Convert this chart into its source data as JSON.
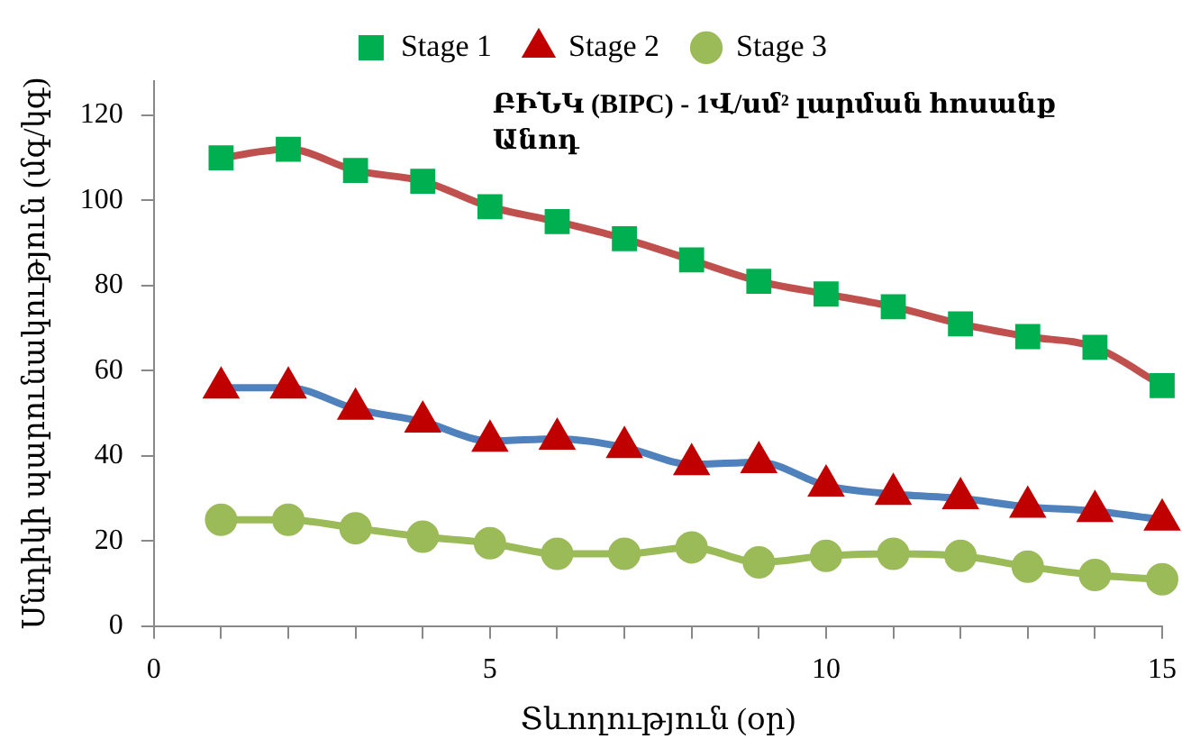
{
  "chart_data": {
    "type": "line",
    "xlabel": "Տևողություն (օր)",
    "ylabel": "Սնդիկի պարունակություն (մգ/կգ)",
    "annotations": [
      "ԲԻՆԿ (BIPC) - 1Վ/սմ² լարման հոսանք",
      "Անոդ"
    ],
    "x": [
      1,
      2,
      3,
      4,
      5,
      6,
      7,
      8,
      9,
      10,
      11,
      12,
      13,
      14,
      15
    ],
    "xlim": [
      0,
      15
    ],
    "xticks": [
      0,
      {
        "value": 1,
        "label": null
      },
      {
        "value": 2,
        "label": null
      },
      {
        "value": 3,
        "label": null
      },
      {
        "value": 4,
        "label": null
      },
      5,
      {
        "value": 6,
        "label": null
      },
      {
        "value": 7,
        "label": null
      },
      {
        "value": 8,
        "label": null
      },
      {
        "value": 9,
        "label": null
      },
      10,
      {
        "value": 11,
        "label": null
      },
      {
        "value": 12,
        "label": null
      },
      {
        "value": 13,
        "label": null
      },
      {
        "value": 14,
        "label": null
      },
      15
    ],
    "ylim": [
      0,
      128
    ],
    "yticks": [
      0,
      20,
      40,
      60,
      80,
      100,
      120
    ],
    "grid": false,
    "legend": "top",
    "series": [
      {
        "name": "Stage 1",
        "color": "#c0504d",
        "marker": "square",
        "colors": [
          "#00b050",
          "#00b050",
          "#00b050",
          "#00b050",
          "#00b050",
          "#00b050",
          "#00b050",
          "#00b050",
          "#00b050",
          "#00b050",
          "#00b050",
          "#00b050",
          "#00b050",
          "#00b050",
          "#00b050"
        ],
        "values": [
          110,
          112,
          107,
          104.5,
          98.5,
          95,
          91,
          86,
          81,
          78,
          75,
          71,
          68,
          65.5,
          56.5
        ]
      },
      {
        "name": "Stage 2",
        "color": "#4f81bd",
        "marker": "triangle",
        "colors": [
          "#c00000",
          "#c00000",
          "#c00000",
          "#c00000",
          "#c00000",
          "#c00000",
          "#c00000",
          "#c00000",
          "#c00000",
          "#c00000",
          "#c00000",
          "#c00000",
          "#c00000",
          "#c00000",
          "#c00000"
        ],
        "values": [
          56,
          56,
          51,
          48,
          43.5,
          44,
          42,
          38,
          38.5,
          33,
          31,
          30,
          28,
          27,
          25
        ]
      },
      {
        "name": "Stage 3",
        "color": "#9bbb59",
        "marker": "circle",
        "colors": [
          "#9bbb59",
          "#9bbb59",
          "#9bbb59",
          "#9bbb59",
          "#9bbb59",
          "#9bbb59",
          "#9bbb59",
          "#9bbb59",
          "#9bbb59",
          "#9bbb59",
          "#9bbb59",
          "#9bbb59",
          "#9bbb59",
          "#9bbb59",
          "#9bbb59"
        ],
        "values": [
          25,
          25,
          23,
          21,
          19.5,
          17,
          17,
          18.5,
          15,
          16.5,
          17,
          16.5,
          14,
          12,
          11
        ]
      }
    ]
  }
}
